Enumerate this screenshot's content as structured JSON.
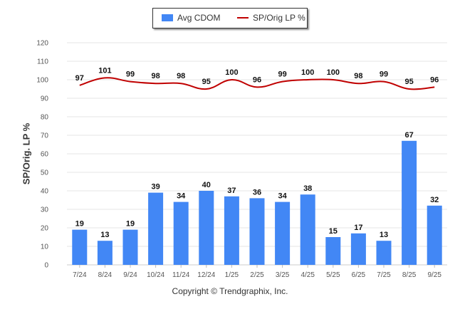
{
  "legend": {
    "bar_label": "Avg CDOM",
    "line_label": "SP/Orig LP %"
  },
  "colors": {
    "bar": "#4287f5",
    "line": "#c00000",
    "grid": "#e6e6e6",
    "text": "#333333"
  },
  "footer": "Copyright © Trendgraphix, Inc.",
  "chart_data": {
    "type": "bar",
    "title": "",
    "xlabel": "",
    "ylabel": "SP/Orig. LP %",
    "ylim": [
      0,
      120
    ],
    "yticks": [
      0,
      10,
      20,
      30,
      40,
      50,
      60,
      70,
      80,
      90,
      100,
      110,
      120
    ],
    "grid": true,
    "legend_position": "top-center",
    "categories": [
      "7/24",
      "8/24",
      "9/24",
      "10/24",
      "11/24",
      "12/24",
      "1/25",
      "2/25",
      "3/25",
      "4/25",
      "5/25",
      "6/25",
      "7/25",
      "8/25",
      "9/25"
    ],
    "series": [
      {
        "name": "Avg CDOM",
        "type": "bar",
        "values": [
          19,
          13,
          19,
          39,
          34,
          40,
          37,
          36,
          34,
          38,
          15,
          17,
          13,
          67,
          32
        ]
      },
      {
        "name": "SP/Orig LP %",
        "type": "line",
        "values": [
          97,
          101,
          99,
          98,
          98,
          95,
          100,
          96,
          99,
          100,
          100,
          98,
          99,
          95,
          96
        ]
      }
    ]
  }
}
